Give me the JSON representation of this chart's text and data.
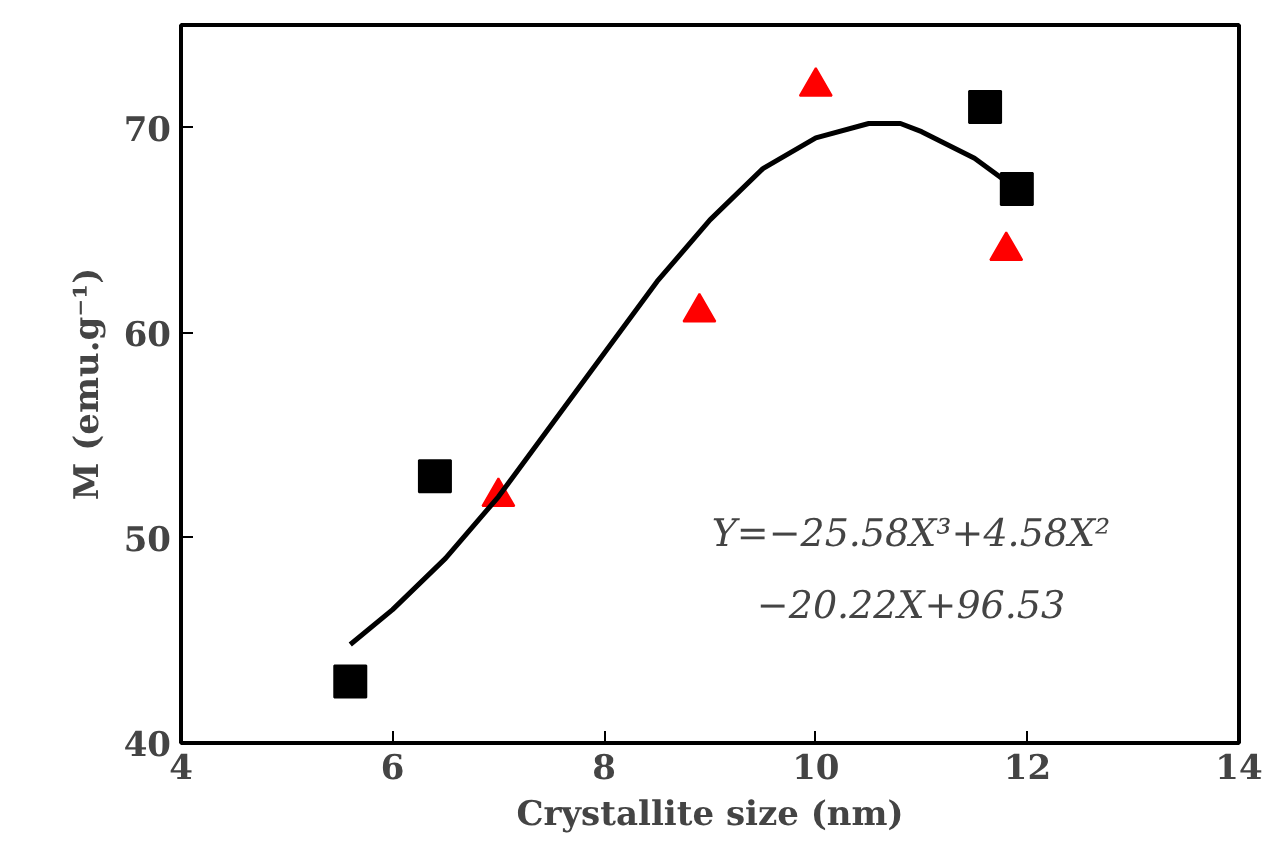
{
  "chart_data": {
    "type": "scatter",
    "xlabel": "Crystallite size (nm)",
    "ylabel": "M (emu.g⁻¹)",
    "xlim": [
      4,
      14
    ],
    "xticks": [
      4,
      6,
      8,
      10,
      12,
      14
    ],
    "ylim": [
      40,
      75
    ],
    "yticks": [
      40,
      50,
      60,
      70
    ],
    "grid": false,
    "series": [
      {
        "marker": "square",
        "color": "#000000",
        "x": [
          5.6,
          6.4,
          11.6,
          11.9
        ],
        "values": [
          43,
          53,
          71,
          67
        ]
      },
      {
        "marker": "triangle",
        "color": "#ff0000",
        "x": [
          7.0,
          8.9,
          10.0,
          11.8
        ],
        "values": [
          52,
          61,
          72,
          64
        ]
      },
      {
        "type": "line",
        "color": "#000000",
        "line_style": "solid",
        "x": [
          5.6,
          6.0,
          6.5,
          7.0,
          7.5,
          8.0,
          8.5,
          9.0,
          9.5,
          10.0,
          10.5,
          10.8,
          11.0,
          11.5,
          11.9
        ],
        "values": [
          44.8,
          46.5,
          49,
          52,
          55.5,
          59,
          62.5,
          65.5,
          68,
          69.5,
          70.2,
          70.2,
          69.8,
          68.5,
          67
        ]
      }
    ],
    "annotations": [
      "Y=−25.58X³+4.58X²",
      "−20.22X+96.53"
    ]
  }
}
